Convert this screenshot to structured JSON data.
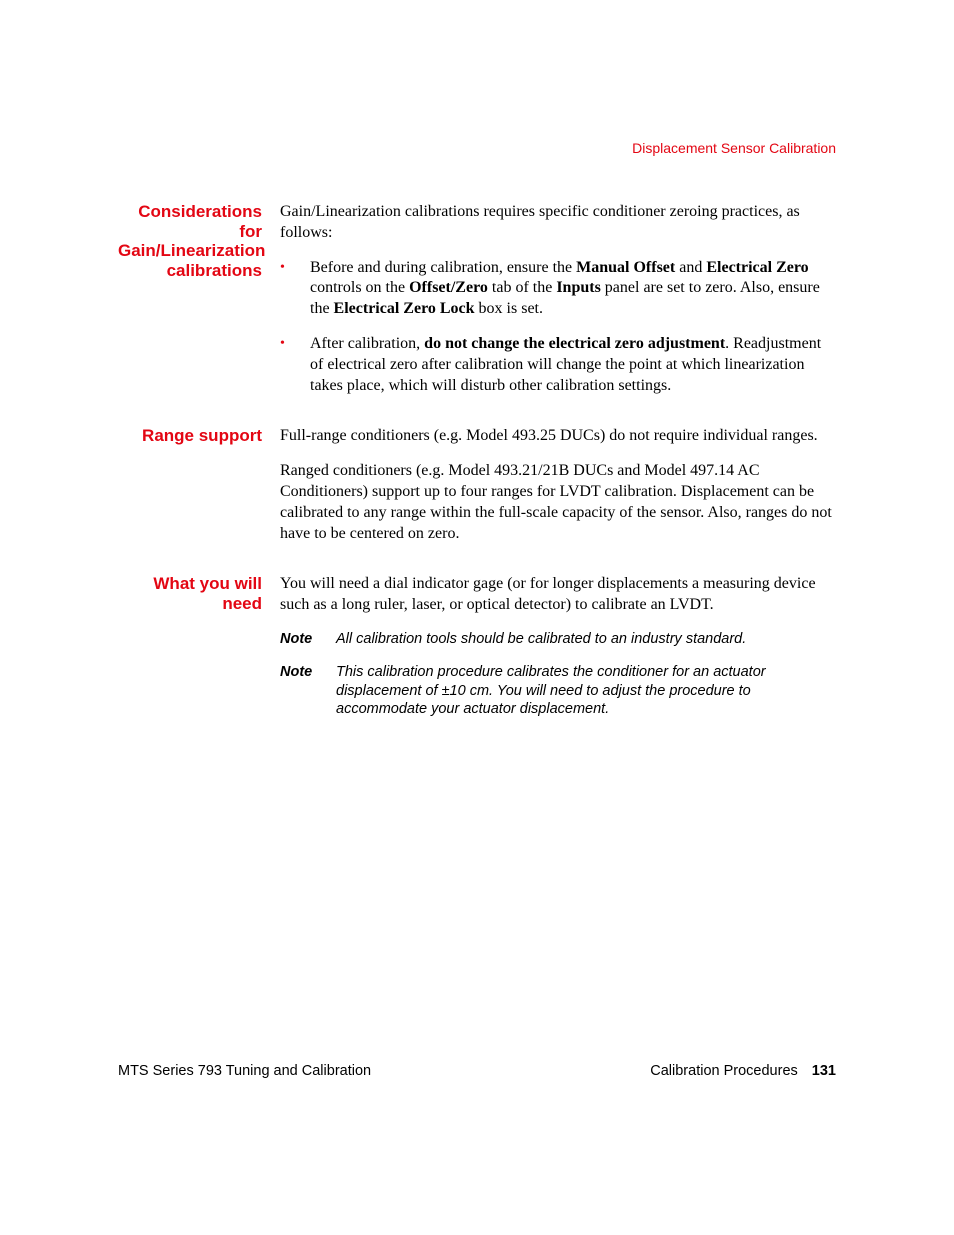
{
  "colors": {
    "accent": "#e30613",
    "text": "#000000",
    "background": "#ffffff"
  },
  "typography": {
    "body_font": "Times New Roman",
    "ui_font": "Arial",
    "body_size_pt": 12,
    "heading_size_pt": 13,
    "note_size_pt": 11
  },
  "header": {
    "section_title": "Displacement Sensor Calibration"
  },
  "sections": [
    {
      "heading": "Considerations for Gain/Linearization calibrations",
      "intro": "Gain/Linearization calibrations requires specific conditioner zeroing practices, as follows:",
      "bullets": [
        {
          "parts": [
            {
              "t": "Before and during calibration, ensure the ",
              "b": false
            },
            {
              "t": "Manual Offset",
              "b": true
            },
            {
              "t": " and ",
              "b": false
            },
            {
              "t": "Electrical Zero",
              "b": true
            },
            {
              "t": " controls on the ",
              "b": false
            },
            {
              "t": "Offset/Zero",
              "b": true
            },
            {
              "t": " tab of the ",
              "b": false
            },
            {
              "t": "Inputs",
              "b": true
            },
            {
              "t": " panel are set to zero. Also, ensure the ",
              "b": false
            },
            {
              "t": "Electrical Zero Lock",
              "b": true
            },
            {
              "t": " box is set.",
              "b": false
            }
          ]
        },
        {
          "parts": [
            {
              "t": "After calibration, ",
              "b": false
            },
            {
              "t": "do not change the electrical zero adjustment",
              "b": true
            },
            {
              "t": ". Readjustment of electrical zero after calibration will change the point at which linearization takes place, which will disturb other calibration settings.",
              "b": false
            }
          ]
        }
      ]
    },
    {
      "heading": "Range support",
      "paragraphs": [
        "Full-range conditioners (e.g. Model 493.25 DUCs) do not require individual ranges.",
        "Ranged conditioners (e.g. Model 493.21/21B DUCs and Model 497.14 AC Conditioners) support up to four ranges for LVDT calibration. Displacement can be calibrated to any range within the full-scale capacity of the sensor. Also, ranges do not have to be centered on zero."
      ]
    },
    {
      "heading": "What you will need",
      "paragraphs": [
        "You will need a dial indicator gage (or for longer displacements a measuring device such as a long ruler, laser, or optical detector) to calibrate an LVDT."
      ],
      "notes": [
        {
          "label": "Note",
          "text": "All calibration tools should be calibrated to an industry standard."
        },
        {
          "label": "Note",
          "text": "This calibration procedure calibrates the conditioner for an actuator displacement of ±10 cm. You will need to adjust the procedure to accommodate your actuator displacement."
        }
      ]
    }
  ],
  "footer": {
    "left": "MTS Series 793 Tuning and Calibration",
    "right": "Calibration Procedures",
    "page_number": "131"
  }
}
